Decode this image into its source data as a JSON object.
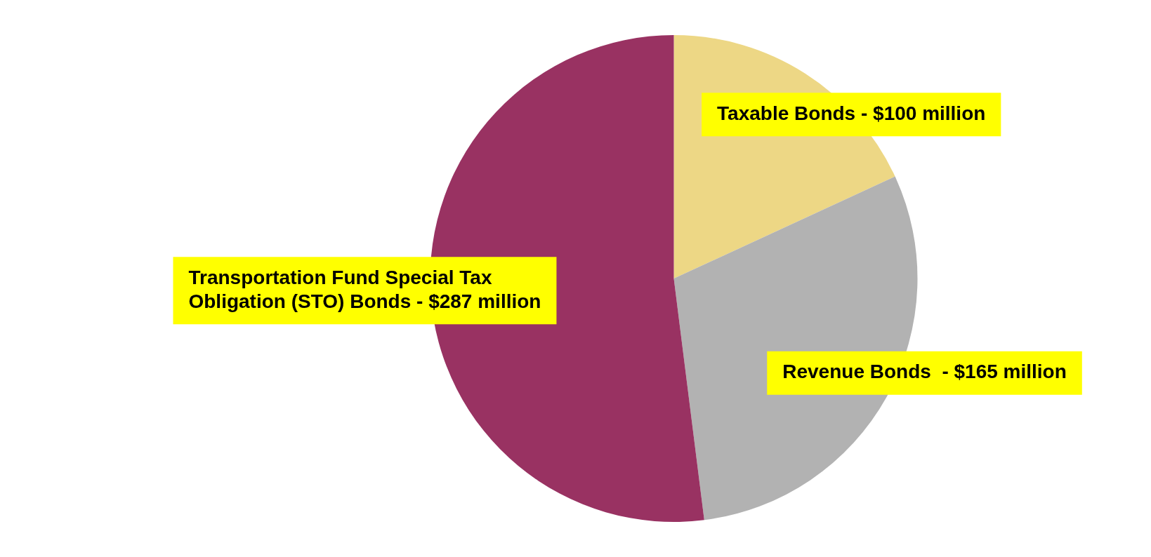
{
  "chart_data": {
    "type": "pie",
    "categories": [
      "Taxable Bonds -",
      "Revenue Bonds  -",
      "Transportation Fund Special Tax Obligation (STO) Bonds -"
    ],
    "values": [
      100,
      165,
      287
    ],
    "value_labels": [
      "$100 million",
      "$165 million",
      "$287 million"
    ],
    "colors": [
      "#edd785",
      "#b2b2b2",
      "#993262"
    ],
    "legend": false
  }
}
